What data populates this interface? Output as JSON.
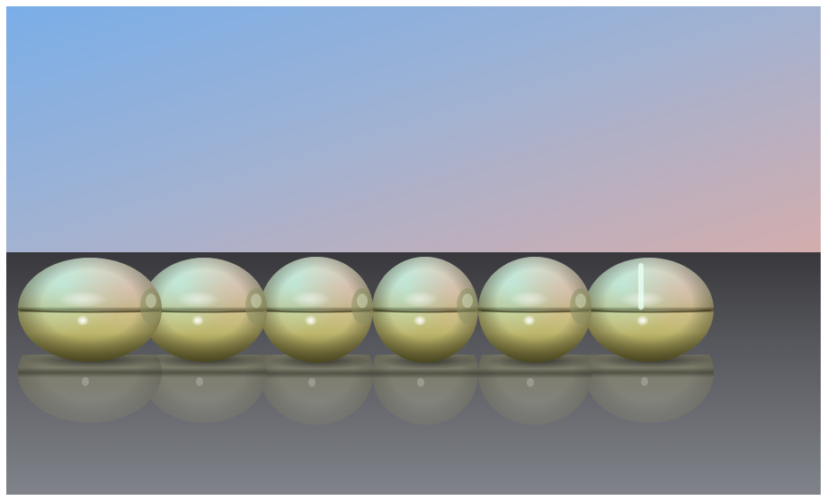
{
  "scene": {
    "subject": "metallic-spheres",
    "sphere_count": 6,
    "colors": {
      "frame": "#ffffff",
      "sky_top_left": "#7fb0e6",
      "sky_mid": "#a7b2cb",
      "sky_bottom_right": "#cfaeaf",
      "floor_near_horizon": "#3a3a3e",
      "floor_near_viewer": "#7d8085",
      "gold_light": "#f2f0c8",
      "gold_mid": "#c4bf78",
      "gold_dark": "#5e5a2c",
      "teal_reflection": "#aee3dc",
      "pink_reflection": "#d9b3ae"
    }
  }
}
